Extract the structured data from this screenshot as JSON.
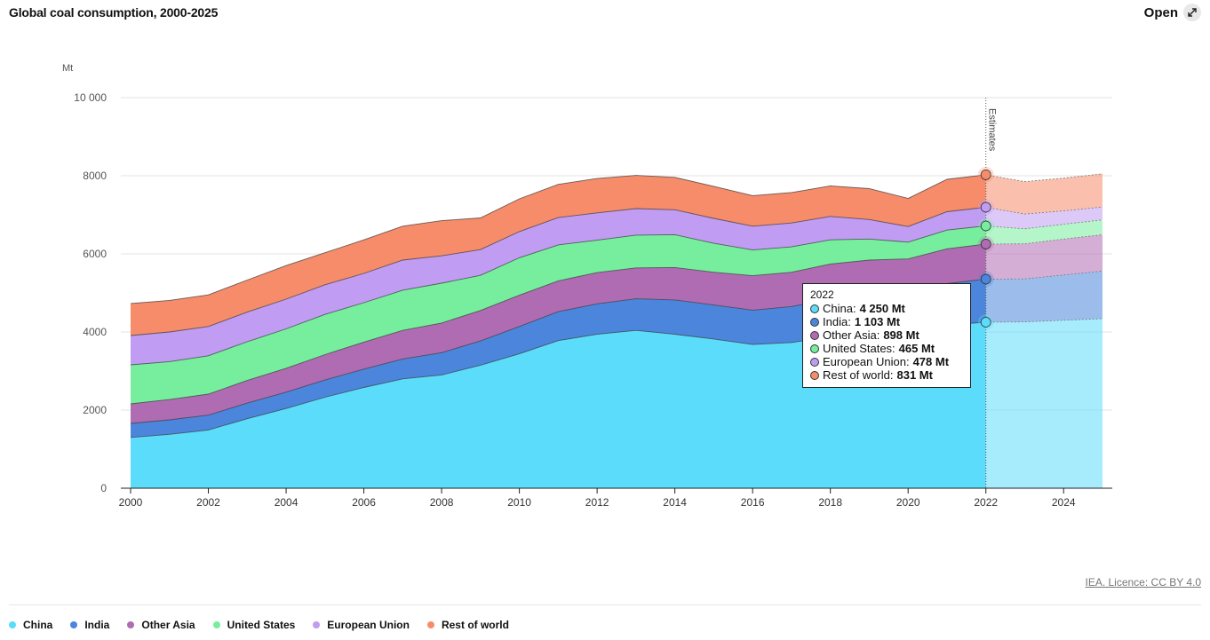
{
  "header": {
    "title": "Global coal consumption, 2000-2025",
    "open_label": "Open",
    "open_icon": "expand-icon"
  },
  "credit": "IEA. Licence: CC BY 4.0",
  "chart_data": {
    "type": "area",
    "stacked": true,
    "ylabel": "Mt",
    "ylim": [
      0,
      10000
    ],
    "yticks": [
      0,
      2000,
      4000,
      6000,
      8000,
      10000
    ],
    "ytick_labels": [
      "0",
      "2000",
      "4000",
      "6000",
      "8000",
      "10 000"
    ],
    "xlim": [
      2000,
      2025
    ],
    "xticks": [
      2000,
      2002,
      2004,
      2006,
      2008,
      2010,
      2012,
      2014,
      2016,
      2018,
      2020,
      2022,
      2024
    ],
    "x": [
      2000,
      2001,
      2002,
      2003,
      2004,
      2005,
      2006,
      2007,
      2008,
      2009,
      2010,
      2011,
      2012,
      2013,
      2014,
      2015,
      2016,
      2017,
      2018,
      2019,
      2020,
      2021,
      2022,
      2023,
      2024,
      2025
    ],
    "estimates_from": 2022,
    "estimates_label": "Estimates",
    "legend_position": "bottom",
    "series": [
      {
        "name": "China",
        "color": "#5cdcfb",
        "values": [
          1300,
          1380,
          1490,
          1780,
          2040,
          2330,
          2580,
          2800,
          2900,
          3150,
          3440,
          3780,
          3940,
          4040,
          3940,
          3820,
          3680,
          3730,
          3880,
          3960,
          4050,
          4180,
          4250,
          4260,
          4300,
          4340
        ]
      },
      {
        "name": "India",
        "color": "#4b86dc",
        "values": [
          360,
          370,
          380,
          400,
          420,
          440,
          470,
          510,
          570,
          620,
          700,
          740,
          780,
          810,
          880,
          870,
          880,
          920,
          970,
          960,
          900,
          1060,
          1103,
          1100,
          1160,
          1220
        ]
      },
      {
        "name": "Other Asia",
        "color": "#b06cb3",
        "values": [
          500,
          520,
          540,
          580,
          610,
          650,
          690,
          730,
          760,
          780,
          800,
          790,
          800,
          790,
          830,
          840,
          880,
          880,
          890,
          920,
          920,
          890,
          898,
          900,
          920,
          930
        ]
      },
      {
        "name": "United States",
        "color": "#77ee9d",
        "values": [
          1000,
          970,
          980,
          990,
          1010,
          1030,
          1010,
          1030,
          1020,
          900,
          960,
          920,
          830,
          840,
          840,
          740,
          660,
          650,
          620,
          540,
          430,
          480,
          465,
          380,
          380,
          380
        ]
      },
      {
        "name": "European Union",
        "color": "#c09cf2",
        "values": [
          750,
          760,
          750,
          760,
          760,
          760,
          750,
          770,
          700,
          660,
          670,
          700,
          700,
          680,
          640,
          640,
          610,
          610,
          600,
          500,
          400,
          470,
          478,
          380,
          340,
          330
        ]
      },
      {
        "name": "Rest of world",
        "color": "#f68c6a",
        "values": [
          820,
          810,
          810,
          820,
          860,
          820,
          860,
          870,
          900,
          810,
          840,
          850,
          880,
          850,
          830,
          820,
          780,
          780,
          780,
          790,
          720,
          830,
          831,
          830,
          840,
          850
        ]
      }
    ],
    "tooltip": {
      "year": "2022",
      "rows": [
        {
          "name": "China:",
          "value": "4 250 Mt",
          "color": "#5cdcfb"
        },
        {
          "name": "India:",
          "value": "1 103 Mt",
          "color": "#4b86dc"
        },
        {
          "name": "Other Asia:",
          "value": "898 Mt",
          "color": "#b06cb3"
        },
        {
          "name": "United States:",
          "value": "465 Mt",
          "color": "#77ee9d"
        },
        {
          "name": "European Union:",
          "value": "478 Mt",
          "color": "#c09cf2"
        },
        {
          "name": "Rest of world:",
          "value": "831 Mt",
          "color": "#f68c6a"
        }
      ]
    }
  },
  "legend": [
    {
      "label": "China",
      "color": "#5cdcfb"
    },
    {
      "label": "India",
      "color": "#4b86dc"
    },
    {
      "label": "Other Asia",
      "color": "#b06cb3"
    },
    {
      "label": "United States",
      "color": "#77ee9d"
    },
    {
      "label": "European Union",
      "color": "#c09cf2"
    },
    {
      "label": "Rest of world",
      "color": "#f68c6a"
    }
  ]
}
